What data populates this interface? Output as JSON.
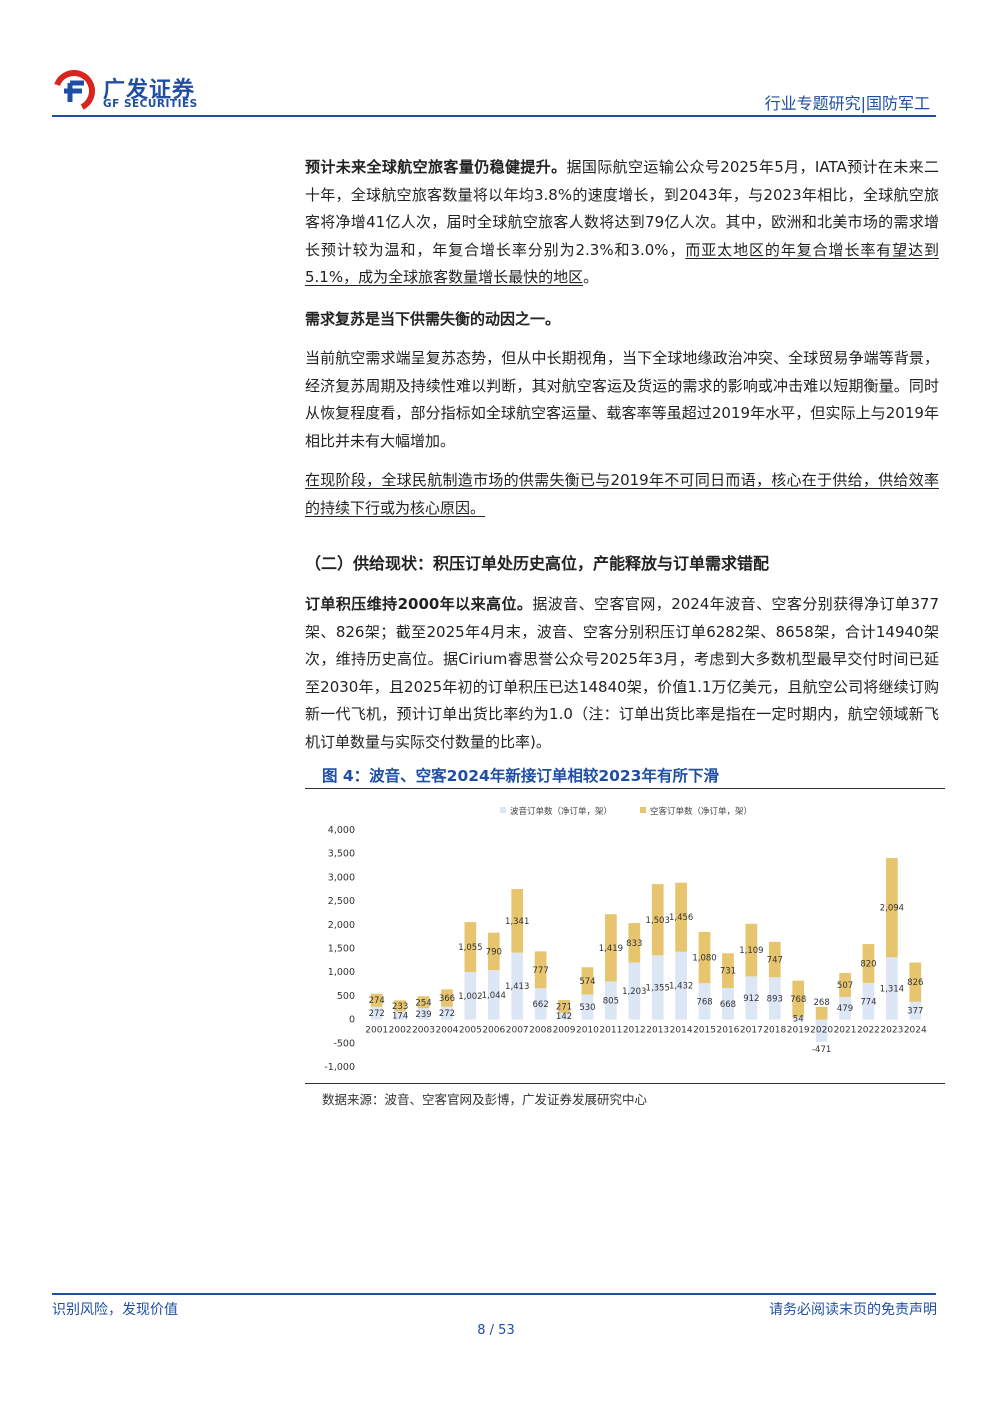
{
  "header": {
    "logo_name": "广发证券",
    "logo_sub": "GF SECURITIES",
    "right_text": "行业专题研究|国防军工"
  },
  "p1": {
    "bold": "预计未来全球航空旅客量仍稳健提升。",
    "text": "据国际航空运输公众号2025年5月，IATA预计在未来二十年，全球航空旅客数量将以年均3.8%的速度增长，到2043年，与2023年相比，全球航空旅客将净增41亿人次，届时全球航空旅客人数将达到79亿人次。其中，欧洲和北美市场的需求增长预计较为温和，年复合增长率分别为2.3%和3.0%，",
    "underline": "而亚太地区的年复合增长率有望达到5.1%，成为全球旅客数量增长最快的地区",
    "tail": "。"
  },
  "h_demand": "需求复苏是当下供需失衡的动因之一。",
  "p2": "当前航空需求端呈复苏态势，但从中长期视角，当下全球地缘政治冲突、全球贸易争端等背景，经济复苏周期及持续性难以判断，其对航空客运及货运的需求的影响或冲击难以短期衡量。同时从恢复程度看，部分指标如全球航空客运量、载客率等虽超过2019年水平，但实际上与2019年相比并未有大幅增加。",
  "p3": "在现阶段，全球民航制造市场的供需失衡已与2019年不可同日而语，核心在于供给，供给效率的持续下行或为核心原因。",
  "section_title": "（二）供给现状：积压订单处历史高位，产能释放与订单需求错配",
  "p4": {
    "bold": "订单积压维持2000年以来高位。",
    "text": "据波音、空客官网，2024年波音、空客分别获得净订单377架、826架；截至2025年4月末，波音、空客分别积压订单6282架、8658架，合计14940架次，维持历史高位。据Cirium睿思誉公众号2025年3月，考虑到大多数机型最早交付时间已延至2030年，且2025年初的订单积压已达14840架，价值1.1万亿美元，且航空公司将继续订购新一代飞机，预计订单出货比率约为1.0（注：订单出货比率是指在一定时期内，航空领域新飞机订单数量与实际交付数量的比率)。"
  },
  "figure": {
    "title": "图 4：波音、空客2024年新接订单相较2023年有所下滑",
    "source": "数据来源：波音、空客官网及彭博，广发证券发展研究中心"
  },
  "chart_data": {
    "type": "bar",
    "stacked": true,
    "categories": [
      "2001",
      "2002",
      "2003",
      "2004",
      "2005",
      "2006",
      "2007",
      "2008",
      "2009",
      "2010",
      "2011",
      "2012",
      "2013",
      "2014",
      "2015",
      "2016",
      "2017",
      "2018",
      "2019",
      "2020",
      "2021",
      "2022",
      "2023",
      "2024"
    ],
    "series": [
      {
        "name": "波音订单数（净订单，架）",
        "color": "#dde6f5",
        "values": [
          272,
          174,
          239,
          272,
          1002,
          1044,
          1413,
          662,
          142,
          530,
          805,
          1203,
          1355,
          1432,
          768,
          668,
          912,
          893,
          54,
          -471,
          479,
          774,
          1314,
          377
        ]
      },
      {
        "name": "空客订单数（净订单，架）",
        "color": "#e6c56e",
        "values": [
          274,
          233,
          254,
          366,
          1055,
          790,
          1341,
          777,
          271,
          574,
          1419,
          833,
          1503,
          1456,
          1080,
          731,
          1109,
          747,
          768,
          268,
          507,
          820,
          2094,
          826
        ]
      }
    ],
    "value_labels": {
      "boeing": [
        "272",
        "174",
        "239",
        "272",
        "1,002",
        "1,044",
        "1,413",
        "662",
        "142",
        "530",
        "805",
        "1,203",
        "1,355",
        "1,432",
        "768",
        "668",
        "912",
        "893",
        "54",
        "-471",
        "479",
        "774",
        "1,314",
        "377"
      ],
      "airbus": [
        "274",
        "233",
        "254",
        "366",
        "1,055",
        "790",
        "1,341",
        "777",
        "271",
        "574",
        "1,419",
        "833",
        "1,503",
        "1,456",
        "1,080",
        "731",
        "1,109",
        "747",
        "768",
        "268",
        "507",
        "820",
        "2,094",
        "826"
      ]
    },
    "yticks": [
      "4,000",
      "3,500",
      "3,000",
      "2,500",
      "2,000",
      "1,500",
      "1,000",
      "500",
      "0",
      "-500",
      "-1,000"
    ],
    "ylim": [
      -1000,
      4000
    ],
    "legend_position": "top"
  },
  "footer": {
    "left": "识别风险，发现价值",
    "right": "请务必阅读末页的免责声明",
    "page": "8 / 53"
  }
}
